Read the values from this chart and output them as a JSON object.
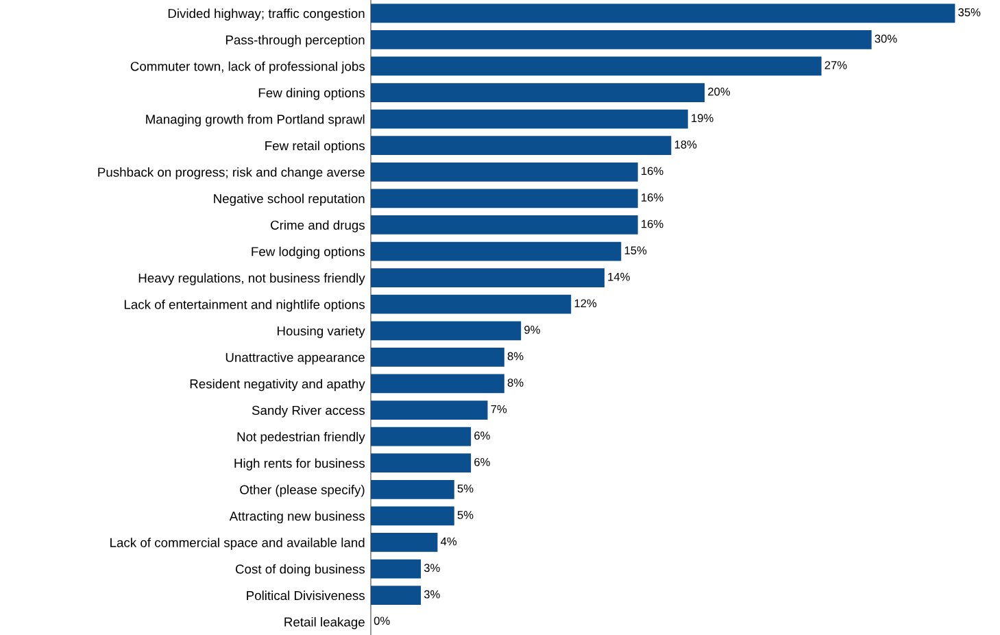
{
  "chart_data": {
    "type": "bar",
    "orientation": "horizontal",
    "categories": [
      "Divided highway; traffic congestion",
      "Pass-through perception",
      "Commuter town, lack of professional jobs",
      "Few dining options",
      "Managing growth from Portland sprawl",
      "Few retail options",
      "Pushback on progress; risk and change averse",
      "Negative school reputation",
      "Crime and drugs",
      "Few lodging options",
      "Heavy regulations, not business friendly",
      "Lack of entertainment and nightlife options",
      "Housing variety",
      "Unattractive appearance",
      "Resident negativity and apathy",
      "Sandy River access",
      "Not pedestrian friendly",
      "High rents for business",
      "Other (please specify)",
      "Attracting new business",
      "Lack of commercial space and available land",
      "Cost of doing business",
      "Political Divisiveness",
      "Retail leakage"
    ],
    "values": [
      35,
      30,
      27,
      20,
      19,
      18,
      16,
      16,
      16,
      15,
      14,
      12,
      9,
      8,
      8,
      7,
      6,
      6,
      5,
      5,
      4,
      3,
      3,
      0
    ],
    "value_labels": [
      "35%",
      "30%",
      "27%",
      "20%",
      "19%",
      "18%",
      "16%",
      "16%",
      "16%",
      "15%",
      "14%",
      "12%",
      "9%",
      "8%",
      "8%",
      "7%",
      "6%",
      "6%",
      "5%",
      "5%",
      "4%",
      "3%",
      "3%",
      "0%"
    ],
    "color": "#0b4f8f",
    "grid": false,
    "legend": false,
    "tick_labels": "y"
  }
}
